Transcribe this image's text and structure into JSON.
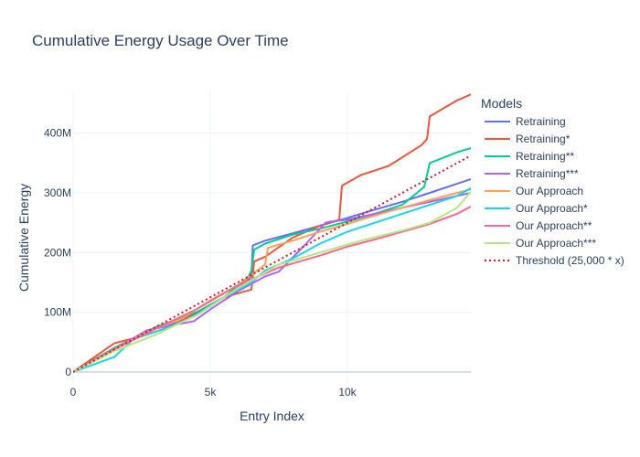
{
  "chart_data": {
    "type": "line",
    "title": "Cumulative Energy Usage Over Time",
    "xlabel": "Entry Index",
    "ylabel": "Cumulative Energy",
    "xlim": [
      0,
      14500
    ],
    "ylim": [
      -20000000,
      470000000
    ],
    "x_ticks": [
      0,
      5000,
      10000
    ],
    "x_tick_labels": [
      "0",
      "5k",
      "10k"
    ],
    "y_ticks": [
      0,
      100000000,
      200000000,
      300000000,
      400000000
    ],
    "y_tick_labels": [
      "0",
      "100M",
      "200M",
      "300M",
      "400M"
    ],
    "grid": true,
    "legend_title": "Models",
    "legend_position": "right",
    "series": [
      {
        "name": "Retraining",
        "color": "#636efa",
        "dash": "solid",
        "x": [
          0,
          1500,
          2800,
          4000,
          5000,
          6000,
          6500,
          6550,
          7000,
          8000,
          9000,
          10000,
          11000,
          12000,
          13000,
          14500
        ],
        "y": [
          0,
          40000000,
          70000000,
          85000000,
          110000000,
          140000000,
          160000000,
          212000000,
          220000000,
          232000000,
          245000000,
          258000000,
          272000000,
          285000000,
          300000000,
          323000000
        ]
      },
      {
        "name": "Retraining*",
        "color": "#ef553b",
        "dash": "solid",
        "x": [
          0,
          1500,
          2500,
          3500,
          4500,
          5500,
          6500,
          6600,
          7000,
          8000,
          9000,
          9700,
          9800,
          10500,
          11500,
          12700,
          12900,
          13000,
          14000,
          14500
        ],
        "y": [
          0,
          48000000,
          60000000,
          75000000,
          100000000,
          125000000,
          138000000,
          185000000,
          193000000,
          225000000,
          245000000,
          255000000,
          312000000,
          330000000,
          345000000,
          380000000,
          390000000,
          428000000,
          455000000,
          465000000
        ]
      },
      {
        "name": "Retraining**",
        "color": "#00cc96",
        "dash": "solid",
        "x": [
          0,
          1500,
          3000,
          4500,
          5500,
          6400,
          6500,
          6600,
          7000,
          8000,
          9000,
          10000,
          11000,
          12000,
          12800,
          13000,
          14000,
          14500
        ],
        "y": [
          0,
          40000000,
          75000000,
          100000000,
          125000000,
          160000000,
          170000000,
          205000000,
          215000000,
          230000000,
          240000000,
          252000000,
          265000000,
          280000000,
          310000000,
          350000000,
          368000000,
          375000000
        ]
      },
      {
        "name": "Retraining***",
        "color": "#ab63fa",
        "dash": "solid",
        "x": [
          0,
          1500,
          2700,
          4400,
          5000,
          6000,
          7000,
          7500,
          8500,
          9200,
          9400,
          10000,
          11000,
          12000,
          13000,
          14000,
          14500
        ],
        "y": [
          0,
          38000000,
          70000000,
          85000000,
          105000000,
          135000000,
          160000000,
          168000000,
          215000000,
          250000000,
          252000000,
          255000000,
          265000000,
          275000000,
          285000000,
          295000000,
          300000000
        ]
      },
      {
        "name": "Our Approach",
        "color": "#ffa15a",
        "dash": "solid",
        "x": [
          0,
          1500,
          2600,
          4000,
          5000,
          6000,
          7000,
          7100,
          8000,
          9000,
          10000,
          11000,
          12000,
          13000,
          14000,
          14500
        ],
        "y": [
          0,
          38000000,
          65000000,
          90000000,
          120000000,
          145000000,
          180000000,
          208000000,
          220000000,
          235000000,
          248000000,
          262000000,
          275000000,
          288000000,
          300000000,
          306000000
        ]
      },
      {
        "name": "Our Approach*",
        "color": "#19d3f3",
        "dash": "solid",
        "x": [
          0,
          1500,
          2200,
          3500,
          4500,
          5500,
          6500,
          7000,
          8000,
          9000,
          10000,
          11000,
          12000,
          13000,
          14000,
          14500
        ],
        "y": [
          0,
          25000000,
          55000000,
          75000000,
          95000000,
          125000000,
          150000000,
          170000000,
          190000000,
          215000000,
          235000000,
          250000000,
          265000000,
          280000000,
          295000000,
          308000000
        ]
      },
      {
        "name": "Our Approach**",
        "color": "#ff6692",
        "dash": "solid",
        "x": [
          0,
          1500,
          3000,
          4500,
          6000,
          7500,
          9000,
          10000,
          11000,
          12000,
          13000,
          14000,
          14500
        ],
        "y": [
          0,
          38000000,
          72000000,
          105000000,
          145000000,
          175000000,
          195000000,
          210000000,
          222000000,
          235000000,
          248000000,
          265000000,
          277000000
        ]
      },
      {
        "name": "Our Approach***",
        "color": "#b6e880",
        "dash": "solid",
        "x": [
          0,
          1500,
          3000,
          4500,
          6000,
          7500,
          9000,
          10500,
          12000,
          13000,
          14000,
          14500
        ],
        "y": [
          0,
          35000000,
          62000000,
          95000000,
          140000000,
          180000000,
          200000000,
          220000000,
          237000000,
          250000000,
          275000000,
          302000000
        ]
      },
      {
        "name": "Threshold (25,000 * x)",
        "color": "#e0161a",
        "dash": "dot",
        "x": [
          0,
          14500
        ],
        "y": [
          0,
          362500000
        ]
      }
    ]
  }
}
